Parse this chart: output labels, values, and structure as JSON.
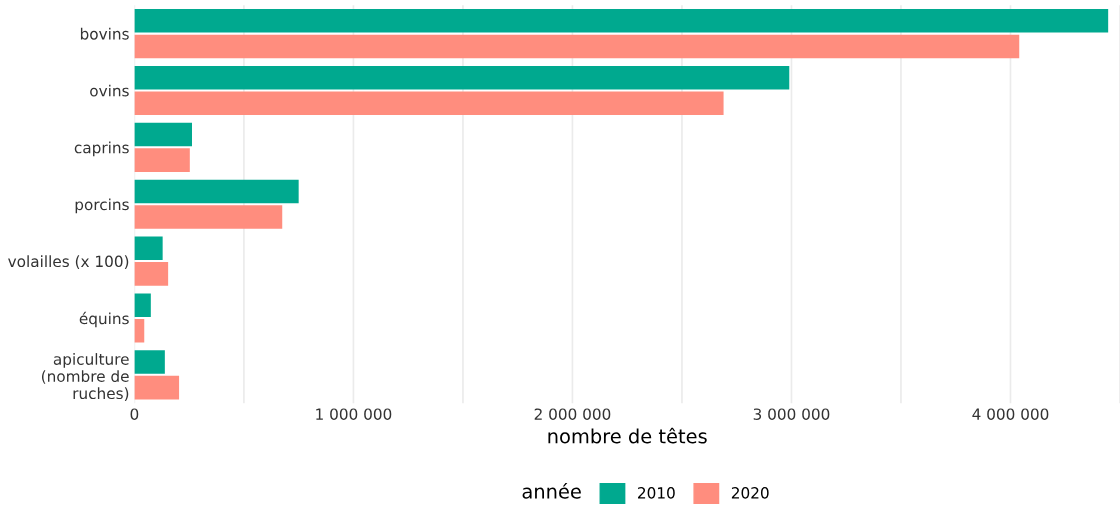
{
  "chart_data": {
    "type": "bar",
    "orientation": "horizontal",
    "xlabel": "nombre de têtes",
    "legend_title": "année",
    "categories": [
      "bovins",
      "ovins",
      "caprins",
      "porcins",
      "volailles (x 100)",
      "équins",
      "apiculture\n(nombre de\nruches)"
    ],
    "series": [
      {
        "name": "2010",
        "color": "#00a98f",
        "values": [
          4446000,
          2990000,
          263000,
          750000,
          129000,
          75000,
          139000
        ]
      },
      {
        "name": "2020",
        "color": "#ff8d7e",
        "values": [
          4040000,
          2690000,
          253000,
          675000,
          154000,
          45000,
          204000
        ]
      }
    ],
    "xlim": [
      0,
      4500000
    ],
    "xticks": [
      0,
      {
        "value": 500000,
        "label": null
      },
      {
        "value": 1000000,
        "label": "1 000 000"
      },
      {
        "value": 1500000,
        "label": null
      },
      {
        "value": 2000000,
        "label": "2 000 000"
      },
      {
        "value": 2500000,
        "label": null
      },
      {
        "value": 3000000,
        "label": "3 000 000"
      },
      {
        "value": 3500000,
        "label": null
      },
      {
        "value": 4000000,
        "label": "4 000 000"
      },
      {
        "value": 4500000,
        "label": null
      }
    ],
    "grid": "x",
    "legend": "bottom"
  }
}
